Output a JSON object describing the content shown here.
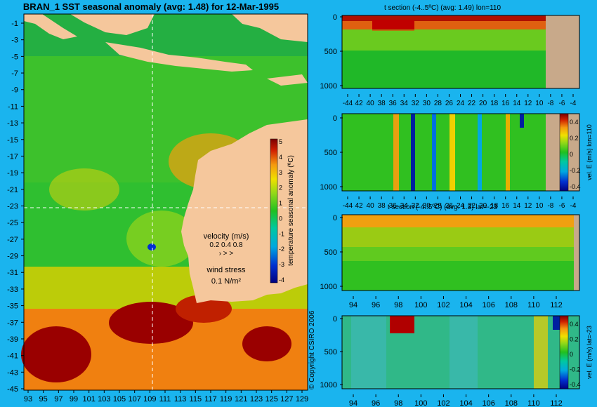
{
  "colors": {
    "background": "#1ab4ee",
    "land": "#f5c79c",
    "land_section": "#c8a98a",
    "colormap": [
      "#00007f",
      "#0022cc",
      "#00a0e8",
      "#00c8a0",
      "#10c010",
      "#30c020",
      "#a0d810",
      "#f0e000",
      "#f5a010",
      "#e84000",
      "#b00000",
      "#7a0000"
    ]
  },
  "chart_data": [
    {
      "type": "heatmap",
      "title": "BRAN_1  SST seasonal anomaly (avg: 1.48) for 12-Mar-1995",
      "x_tick_labels": [
        "93",
        "95",
        "97",
        "99",
        "101",
        "103",
        "105",
        "107",
        "109",
        "111",
        "113",
        "115",
        "117",
        "119",
        "121",
        "123",
        "125",
        "127",
        "129"
      ],
      "y_tick_labels": [
        "-1",
        "-3",
        "-5",
        "-7",
        "-9",
        "-11",
        "-13",
        "-15",
        "-17",
        "-19",
        "-21",
        "-23",
        "-25",
        "-27",
        "-29",
        "-31",
        "-33",
        "-35",
        "-37",
        "-39",
        "-41",
        "-43",
        "-45"
      ],
      "xlim": [
        93,
        130
      ],
      "ylim": [
        -45,
        0
      ],
      "crosshair": {
        "lon": 110,
        "lat": -23
      },
      "colorbar": {
        "label": "temperature seasonal anomaly (ºC)",
        "ticks": [
          "5",
          "4",
          "3",
          "2",
          "1",
          "0",
          "-1",
          "-2",
          "-3",
          "-4"
        ],
        "range": [
          -4,
          5
        ]
      },
      "velocity_legend": {
        "title": "velocity (m/s)",
        "values": "0.2 0.4 0.8",
        "arrows": "›  >  >"
      },
      "wind_legend": {
        "title": "wind stress",
        "value": "0.1 N/m²"
      },
      "copyright": "© Copyright CSIRO 2006"
    },
    {
      "type": "heatmap",
      "title": "t section (-4..5ºC) (avg: 1.49) lon=110",
      "x_tick_labels": [
        "-44",
        "42",
        "40",
        "38",
        "36",
        "34",
        "32",
        "30",
        "28",
        "26",
        "24",
        "22",
        "20",
        "18",
        "16",
        "14",
        "12",
        "10",
        "-8",
        "-6",
        "-4"
      ],
      "y_tick_labels": [
        "0",
        "500",
        "1000"
      ],
      "ylabel": ""
    },
    {
      "type": "heatmap",
      "title": "",
      "x_tick_labels": [
        "-44",
        "42",
        "40",
        "38",
        "36",
        "34",
        "32",
        "30",
        "28",
        "26",
        "24",
        "22",
        "20",
        "18",
        "16",
        "14",
        "12",
        "10",
        "-8",
        "-6",
        "-4"
      ],
      "y_tick_labels": [
        "0",
        "500",
        "1000"
      ],
      "colorbar": {
        "label": "vel. E (m/s) lon=110",
        "ticks": [
          "0.4",
          "0.2",
          "0",
          "-0.2",
          "-0.4"
        ]
      }
    },
    {
      "type": "heatmap",
      "title": "t section (-4..5ºC) (avg: 1.3) lat=-23",
      "x_tick_labels": [
        "94",
        "96",
        "98",
        "100",
        "102",
        "104",
        "106",
        "108",
        "110",
        "112"
      ],
      "y_tick_labels": [
        "0",
        "500",
        "1000"
      ]
    },
    {
      "type": "heatmap",
      "title": "",
      "x_tick_labels": [
        "94",
        "96",
        "98",
        "100",
        "102",
        "104",
        "106",
        "108",
        "110",
        "112"
      ],
      "y_tick_labels": [
        "0",
        "500",
        "1000"
      ],
      "colorbar": {
        "label": "vel. E (m/s) lat=-23",
        "ticks": [
          "0.4",
          "0.2",
          "0",
          "-0.2",
          "-0.4"
        ]
      }
    }
  ]
}
